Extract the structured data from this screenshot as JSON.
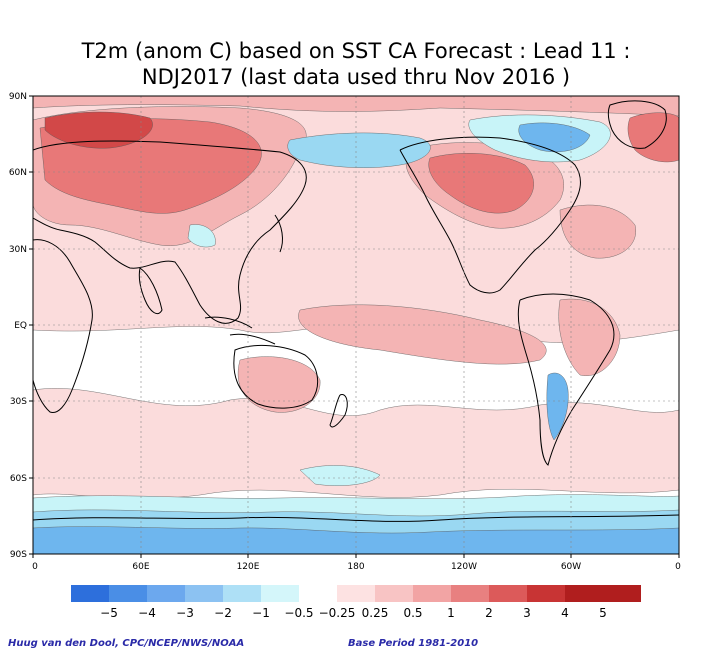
{
  "title": {
    "line1": "T2m (anom C) based on SST CA Forecast : Lead 11 :",
    "line2": "NDJ2017 (last data used thru Nov 2016 )"
  },
  "map": {
    "lat_labels": [
      "90N",
      "60N",
      "30N",
      "EQ",
      "30S",
      "60S",
      "90S"
    ],
    "lon_labels": [
      "0",
      "60E",
      "120E",
      "180",
      "120W",
      "60W",
      "0"
    ],
    "colors": {
      "ocean_background": "#ffffff",
      "warm_light": "#fbdcdc",
      "warm_mid": "#f4b4b4",
      "warm_strong": "#e87878",
      "warm_deep": "#d24848",
      "cool_light": "#c8f4f8",
      "cool_mid": "#9ad8f2",
      "cool_strong": "#6eb6ee",
      "coastline": "#000000",
      "grid": "#888888"
    }
  },
  "colorbar": {
    "labels": [
      "−5",
      "−4",
      "−3",
      "−2",
      "−1",
      "−0.5",
      "−0.25",
      "0.25",
      "0.5",
      "1",
      "2",
      "3",
      "4",
      "5"
    ],
    "colors": [
      "#2d6fdc",
      "#4a8ee6",
      "#6ca8ee",
      "#8cc2f2",
      "#aee0f6",
      "#d4f6fa",
      "#ffffff",
      "#fde2e2",
      "#f8c4c4",
      "#f2a4a4",
      "#e88080",
      "#dc5a5a",
      "#c83434",
      "#b01e1e"
    ]
  },
  "footer": {
    "credit": "Huug van den Dool, CPC/NCEP/NWS/NOAA",
    "base_period": "Base Period 1981-2010"
  }
}
